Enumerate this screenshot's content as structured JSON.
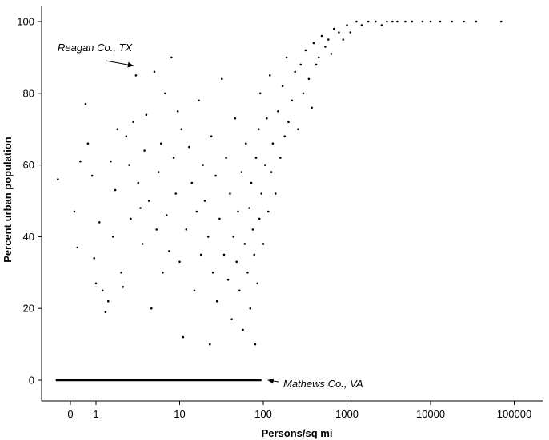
{
  "chart_data": {
    "type": "scatter",
    "title": "",
    "xlabel": "Persons/sq mi",
    "ylabel": "Percent urban population",
    "x_scale": "log",
    "x_ticks": [
      {
        "value": 0,
        "label": "0"
      },
      {
        "value": 1,
        "label": "1"
      },
      {
        "value": 10,
        "label": "10"
      },
      {
        "value": 100,
        "label": "100"
      },
      {
        "value": 1000,
        "label": "1000"
      },
      {
        "value": 10000,
        "label": "10000"
      },
      {
        "value": 100000,
        "label": "100000"
      }
    ],
    "y_ticks": [
      0,
      20,
      40,
      60,
      80,
      100
    ],
    "ylim": [
      0,
      100
    ],
    "grid": false,
    "legend": "none",
    "annotations": [
      {
        "text": "Reagan Co., TX",
        "x": 3.0,
        "y": 87
      },
      {
        "text": "Mathews Co., VA",
        "x": 95,
        "y": 0
      }
    ],
    "series": [
      {
        "points": [
          [
            0.35,
            56
          ],
          [
            0.55,
            47
          ],
          [
            0.6,
            37
          ],
          [
            0.65,
            61
          ],
          [
            0.75,
            77
          ],
          [
            0.8,
            66
          ],
          [
            0.9,
            57
          ],
          [
            0.95,
            34
          ],
          [
            1.0,
            27
          ],
          [
            1.1,
            44
          ],
          [
            1.2,
            25
          ],
          [
            1.3,
            19
          ],
          [
            1.4,
            22
          ],
          [
            1.5,
            61
          ],
          [
            1.6,
            40
          ],
          [
            1.7,
            53
          ],
          [
            1.8,
            70
          ],
          [
            2.0,
            30
          ],
          [
            2.1,
            26
          ],
          [
            2.3,
            68
          ],
          [
            2.5,
            60
          ],
          [
            2.6,
            45
          ],
          [
            2.8,
            72
          ],
          [
            3.0,
            85
          ],
          [
            3.2,
            55
          ],
          [
            3.4,
            48
          ],
          [
            3.6,
            38
          ],
          [
            3.8,
            64
          ],
          [
            4.0,
            74
          ],
          [
            4.3,
            50
          ],
          [
            4.6,
            20
          ],
          [
            5.0,
            86
          ],
          [
            5.3,
            42
          ],
          [
            5.6,
            58
          ],
          [
            6.0,
            66
          ],
          [
            6.3,
            30
          ],
          [
            6.7,
            80
          ],
          [
            7.0,
            46
          ],
          [
            7.5,
            36
          ],
          [
            8.0,
            90
          ],
          [
            8.5,
            62
          ],
          [
            9.0,
            52
          ],
          [
            9.5,
            75
          ],
          [
            10,
            33
          ],
          [
            10.5,
            70
          ],
          [
            11,
            12
          ],
          [
            12,
            42
          ],
          [
            13,
            65
          ],
          [
            14,
            55
          ],
          [
            15,
            25
          ],
          [
            16,
            47
          ],
          [
            17,
            78
          ],
          [
            18,
            35
          ],
          [
            19,
            60
          ],
          [
            20,
            50
          ],
          [
            22,
            40
          ],
          [
            23,
            10
          ],
          [
            24,
            68
          ],
          [
            25,
            30
          ],
          [
            27,
            57
          ],
          [
            28,
            22
          ],
          [
            30,
            45
          ],
          [
            32,
            84
          ],
          [
            34,
            35
          ],
          [
            36,
            62
          ],
          [
            38,
            28
          ],
          [
            40,
            52
          ],
          [
            42,
            17
          ],
          [
            44,
            40
          ],
          [
            46,
            73
          ],
          [
            48,
            33
          ],
          [
            50,
            47
          ],
          [
            52,
            25
          ],
          [
            55,
            58
          ],
          [
            57,
            14
          ],
          [
            60,
            38
          ],
          [
            62,
            66
          ],
          [
            65,
            30
          ],
          [
            68,
            48
          ],
          [
            70,
            20
          ],
          [
            72,
            55
          ],
          [
            75,
            42
          ],
          [
            78,
            35
          ],
          [
            80,
            10
          ],
          [
            82,
            62
          ],
          [
            85,
            27
          ],
          [
            88,
            70
          ],
          [
            90,
            45
          ],
          [
            92,
            80
          ],
          [
            95,
            52
          ],
          [
            100,
            38
          ],
          [
            105,
            60
          ],
          [
            110,
            73
          ],
          [
            115,
            47
          ],
          [
            120,
            85
          ],
          [
            125,
            58
          ],
          [
            130,
            66
          ],
          [
            140,
            52
          ],
          [
            150,
            75
          ],
          [
            160,
            62
          ],
          [
            170,
            82
          ],
          [
            180,
            68
          ],
          [
            190,
            90
          ],
          [
            200,
            72
          ],
          [
            220,
            78
          ],
          [
            240,
            86
          ],
          [
            260,
            70
          ],
          [
            280,
            88
          ],
          [
            300,
            80
          ],
          [
            320,
            92
          ],
          [
            350,
            84
          ],
          [
            380,
            76
          ],
          [
            400,
            94
          ],
          [
            430,
            88
          ],
          [
            460,
            90
          ],
          [
            500,
            96
          ],
          [
            550,
            93
          ],
          [
            600,
            95
          ],
          [
            650,
            91
          ],
          [
            700,
            98
          ],
          [
            800,
            97
          ],
          [
            900,
            95
          ],
          [
            1000,
            99
          ],
          [
            1100,
            97
          ],
          [
            1300,
            100
          ],
          [
            1500,
            99
          ],
          [
            1800,
            100
          ],
          [
            2200,
            100
          ],
          [
            2600,
            99
          ],
          [
            3000,
            100
          ],
          [
            3500,
            100
          ],
          [
            4000,
            100
          ],
          [
            5000,
            100
          ],
          [
            6000,
            100
          ],
          [
            8000,
            100
          ],
          [
            10000,
            100
          ],
          [
            13000,
            100
          ],
          [
            18000,
            100
          ],
          [
            25000,
            100
          ],
          [
            35000,
            100
          ],
          [
            70000,
            100
          ]
        ]
      }
    ]
  }
}
